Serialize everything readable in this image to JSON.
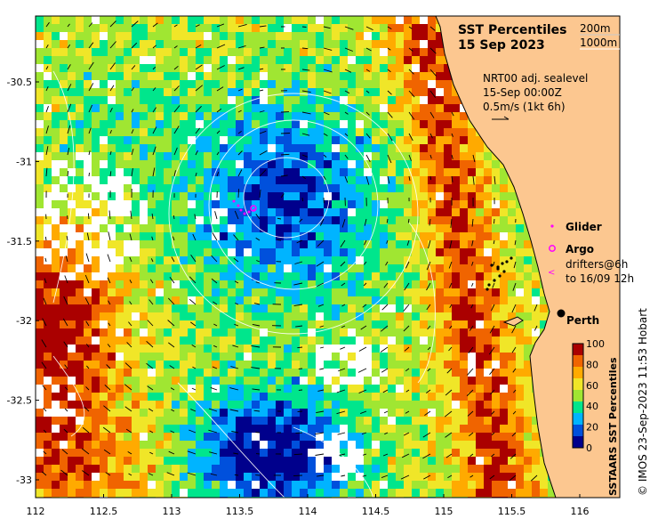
{
  "title": {
    "line1": "SST Percentiles",
    "line2": "15 Sep 2023"
  },
  "isobath_legend": [
    "200m",
    "1000m"
  ],
  "current_info": {
    "line1": "NRT00 adj. sealevel",
    "line2": "15-Sep 00:00Z",
    "line3": "0.5m/s (1kt 6h)"
  },
  "legend": {
    "glider": "Glider",
    "argo": "Argo",
    "drifters_line1": "drifters@6h",
    "drifters_line2": "to 16/09 12h"
  },
  "place": "Perth",
  "colorbar": {
    "label": "SSTAARS SST Percentiles",
    "ticks": [
      "0",
      "20",
      "40",
      "60",
      "80",
      "100"
    ]
  },
  "credit": "© IMOS 23-Sep-2023 11:53 Hobart",
  "axes": {
    "x_ticks": [
      "112",
      "112.5",
      "113",
      "113.5",
      "114",
      "114.5",
      "115",
      "115.5",
      "116"
    ],
    "y_ticks": [
      "-30.5",
      "-31",
      "-31.5",
      "-32",
      "-32.5",
      "-33"
    ]
  },
  "colors": {
    "land": "#fcc790",
    "water_axis_bg": "#ffffff",
    "glider": "#ff00ff",
    "argo": "#ff00ff",
    "drifter": "#ff00ff",
    "scale": [
      "#00008c",
      "#0050dc",
      "#00b4ff",
      "#00e68c",
      "#a0e632",
      "#f0e628",
      "#ffaa00",
      "#f06400",
      "#aa0000"
    ]
  }
}
